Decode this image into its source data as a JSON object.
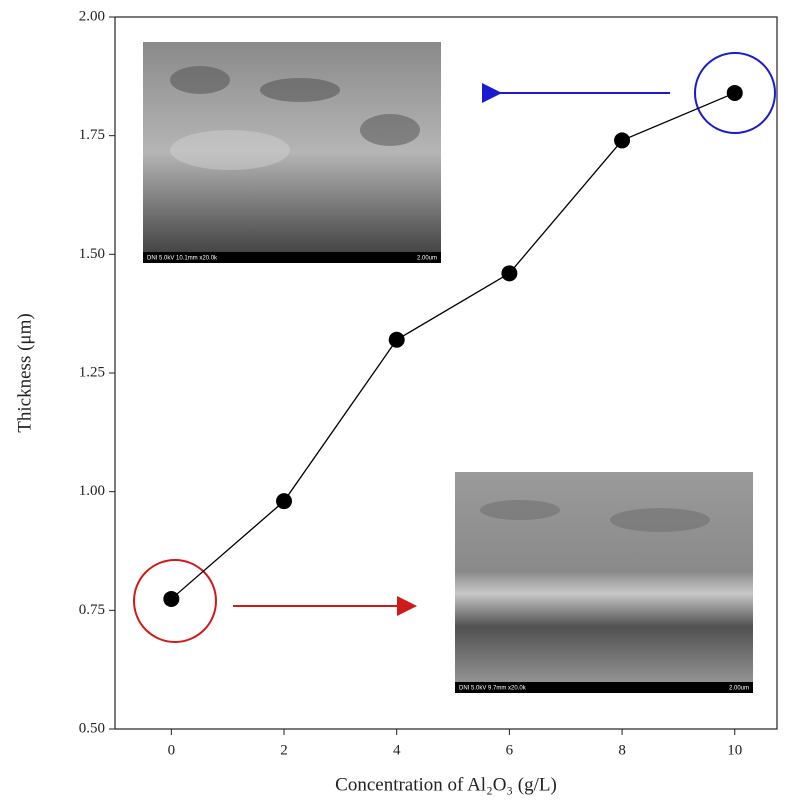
{
  "chart_data": {
    "type": "line",
    "x_label": "Concentration of Al₂O₃ (g/L)",
    "y_label": "Thickness (μm)",
    "x": [
      0,
      2,
      4,
      6,
      8,
      10
    ],
    "values": [
      0.774,
      0.98,
      1.32,
      1.46,
      1.74,
      1.84
    ],
    "color": "#000000",
    "xlim": [
      -1,
      10.75
    ],
    "xticks": [
      0,
      2,
      4,
      6,
      8,
      10
    ],
    "ylim": [
      0.5,
      2.0
    ],
    "yticks": [
      {
        "value": 0.5,
        "label": "0.50"
      },
      0.75,
      {
        "value": 1.0,
        "label": "1.00"
      },
      1.25,
      {
        "value": 1.5,
        "label": "1.50"
      },
      1.75,
      {
        "value": 2.0,
        "label": "2.00"
      }
    ],
    "insets": [
      {
        "caption": "DNI 5.0kV 10.1mm x20.0k",
        "scale": "2.00um"
      },
      {
        "caption": "DNI 5.0kV 9.7mm x20.0k",
        "scale": "2.00um"
      }
    ]
  }
}
